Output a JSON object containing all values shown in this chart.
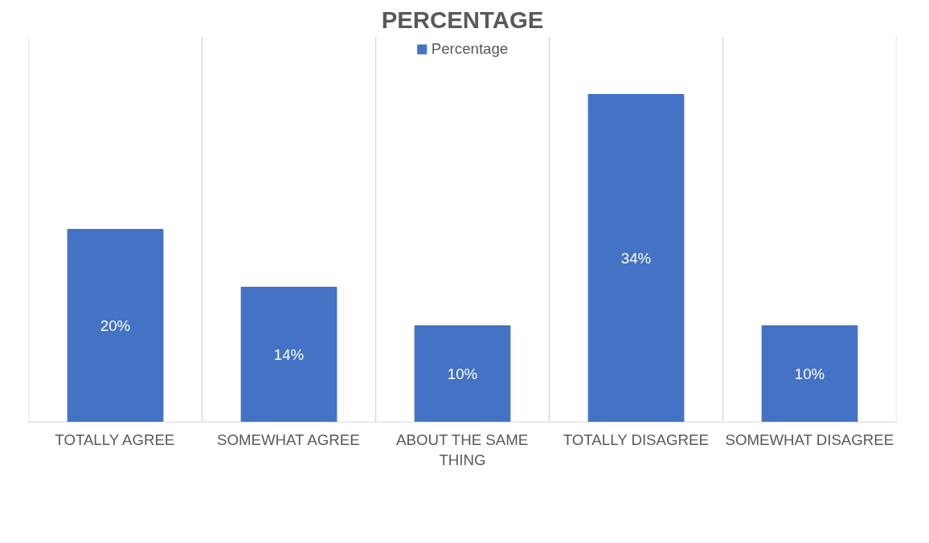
{
  "chart_data": {
    "type": "bar",
    "title": "PERCENTAGE",
    "categories": [
      "TOTALLY AGREE",
      "SOMEWHAT AGREE",
      "ABOUT THE SAME THING",
      "TOTALLY DISAGREE",
      "SOMEWHAT DISAGREE"
    ],
    "series": [
      {
        "name": "Percentage",
        "color": "#4472c4",
        "values": [
          20,
          14,
          10,
          34,
          10
        ],
        "value_labels": [
          "20%",
          "14%",
          "10%",
          "34%",
          "10%"
        ]
      }
    ],
    "ylim": [
      0,
      40
    ],
    "tick_labels": "x",
    "grid": "x",
    "legend": "top"
  }
}
